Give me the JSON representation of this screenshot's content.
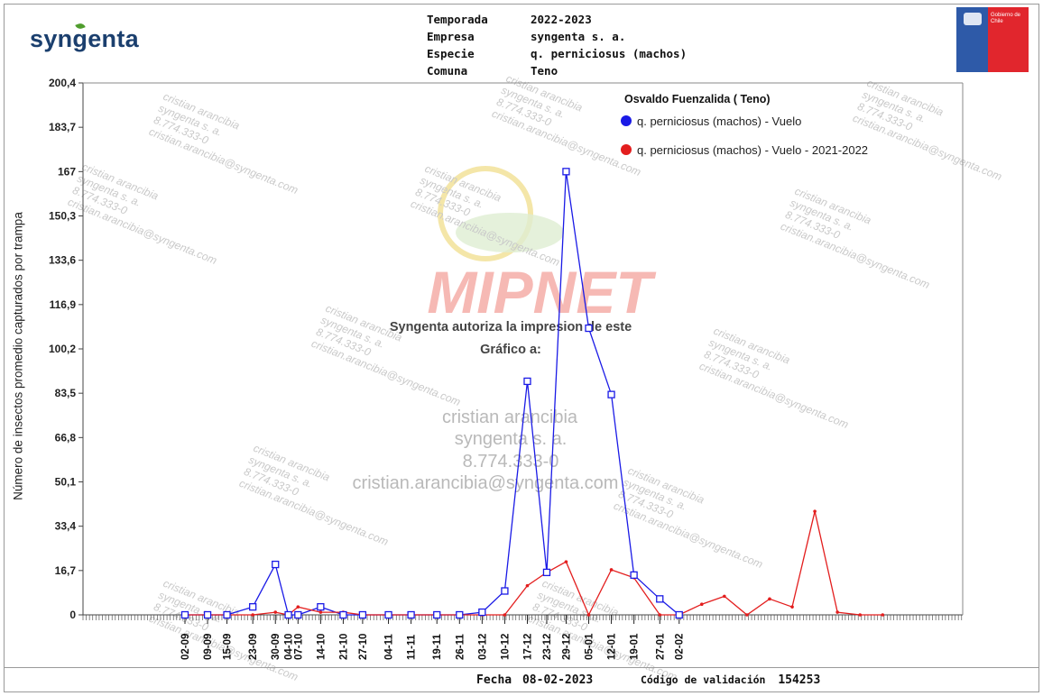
{
  "brand": {
    "logo_text": "syngenta",
    "gov_text": "Gobierno de Chile",
    "brand_colors": {
      "syngenta_blue": "#1b3f6e",
      "gov_blue": "#2e5aa8",
      "gov_red": "#e1262d"
    }
  },
  "header": {
    "labels": [
      "Temporada",
      "Empresa",
      "Especie",
      "Comuna"
    ],
    "values": [
      "2022-2023",
      "syngenta s. a.",
      "q. perniciosus (machos)",
      "Teno"
    ]
  },
  "watermarks": {
    "product": "MIPNET",
    "authorization_line1": "Syngenta autoriza la impresion de este",
    "authorization_line2": "Gráfico a:",
    "user_name": "cristian arancibia",
    "company": "syngenta s. a.",
    "rut": "8.774.333-0",
    "email": "cristian.arancibia@syngenta.com"
  },
  "chart_data": {
    "type": "line",
    "title": "",
    "legend_title": "Osvaldo Fuenzalida ( Teno)",
    "legend_placement": "top-right",
    "ylabel": "Número de insectos promedio capturados por trampa",
    "xlabel": "",
    "ylim": [
      0,
      200.4
    ],
    "yticks": [
      "0",
      "16,7",
      "33,4",
      "50,1",
      "66,8",
      "83,5",
      "100,2",
      "116,9",
      "133,6",
      "150,3",
      "167",
      "183,7",
      "200,4"
    ],
    "ytick_values": [
      0,
      16.7,
      33.4,
      50.1,
      66.8,
      83.5,
      100.2,
      116.9,
      133.6,
      150.3,
      167,
      183.7,
      200.4
    ],
    "xticks": [
      {
        "label": "02-09",
        "day": 1
      },
      {
        "label": "09-09",
        "day": 8
      },
      {
        "label": "15-09",
        "day": 14
      },
      {
        "label": "23-09",
        "day": 22
      },
      {
        "label": "30-09",
        "day": 29
      },
      {
        "label": "04-10",
        "day": 33
      },
      {
        "label": "07-10",
        "day": 36
      },
      {
        "label": "14-10",
        "day": 43
      },
      {
        "label": "21-10",
        "day": 50
      },
      {
        "label": "27-10",
        "day": 56
      },
      {
        "label": "04-11",
        "day": 64
      },
      {
        "label": "11-11",
        "day": 71
      },
      {
        "label": "19-11",
        "day": 79
      },
      {
        "label": "26-11",
        "day": 86
      },
      {
        "label": "03-12",
        "day": 93
      },
      {
        "label": "10-12",
        "day": 100
      },
      {
        "label": "17-12",
        "day": 107
      },
      {
        "label": "23-12",
        "day": 113
      },
      {
        "label": "29-12",
        "day": 119
      },
      {
        "label": "05-01",
        "day": 126
      },
      {
        "label": "12-01",
        "day": 133
      },
      {
        "label": "19-01",
        "day": 140
      },
      {
        "label": "27-01",
        "day": 148
      },
      {
        "label": "02-02",
        "day": 154
      }
    ],
    "series": [
      {
        "name": "q. perniciosus (machos) - Vuelo",
        "color": "#1a1ae6",
        "marker": "square",
        "points": [
          [
            1,
            0
          ],
          [
            8,
            0
          ],
          [
            14,
            0
          ],
          [
            22,
            3
          ],
          [
            29,
            19
          ],
          [
            33,
            0
          ],
          [
            36,
            0
          ],
          [
            43,
            3
          ],
          [
            50,
            0
          ],
          [
            56,
            0
          ],
          [
            64,
            0
          ],
          [
            71,
            0
          ],
          [
            79,
            0
          ],
          [
            86,
            0
          ],
          [
            93,
            1
          ],
          [
            100,
            9
          ],
          [
            107,
            88
          ],
          [
            113,
            16
          ],
          [
            119,
            167
          ],
          [
            126,
            108
          ],
          [
            133,
            83
          ],
          [
            140,
            15
          ],
          [
            148,
            6
          ],
          [
            154,
            0
          ]
        ]
      },
      {
        "name": "q. perniciosus (machos) - Vuelo - 2021-2022",
        "color": "#e31e1e",
        "marker": "dot",
        "points": [
          [
            1,
            0
          ],
          [
            8,
            0
          ],
          [
            14,
            0
          ],
          [
            22,
            0
          ],
          [
            29,
            1
          ],
          [
            33,
            0
          ],
          [
            36,
            3
          ],
          [
            43,
            1
          ],
          [
            50,
            1
          ],
          [
            56,
            0
          ],
          [
            64,
            0
          ],
          [
            71,
            0
          ],
          [
            79,
            0
          ],
          [
            86,
            0
          ],
          [
            93,
            0
          ],
          [
            100,
            0
          ],
          [
            107,
            11
          ],
          [
            113,
            16
          ],
          [
            119,
            20
          ],
          [
            126,
            0
          ],
          [
            133,
            17
          ],
          [
            140,
            14
          ],
          [
            148,
            0
          ],
          [
            154,
            0
          ],
          [
            161,
            4
          ],
          [
            168,
            7
          ],
          [
            175,
            0
          ],
          [
            182,
            6
          ],
          [
            189,
            3
          ],
          [
            196,
            39
          ],
          [
            203,
            1
          ],
          [
            210,
            0
          ],
          [
            217,
            0
          ]
        ]
      }
    ]
  },
  "footer": {
    "date_label": "Fecha",
    "date_value": "08-02-2023",
    "code_label": "Código de validación",
    "code_value": "154253"
  }
}
